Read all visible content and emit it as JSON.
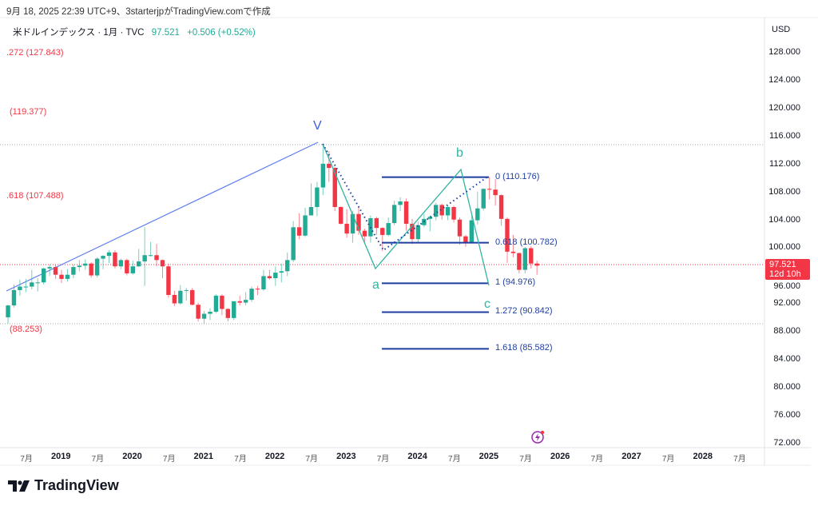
{
  "caption": "9月 18, 2025 22:39 UTC+9、3starterjpがTradingView.comで作成",
  "legend": {
    "symbol": "米ドルインデックス · 1月 · TVC",
    "price": "97.521",
    "change": "+0.506 (+0.52%)"
  },
  "currency": "USD",
  "current_tag": {
    "price": "97.521",
    "countdown": "12d 10h"
  },
  "colors": {
    "up": "#22ab94",
    "down": "#f23645",
    "fib": "#1e3fa0",
    "wave": "#2fb5a0",
    "trend": "#5b7cf0"
  },
  "left_fib_labels": [
    ".272 (127.843)",
    "(119.377)",
    ".618 (107.488)",
    "(88.253)"
  ],
  "fib_levels": [
    {
      "label": "0 (110.176)",
      "value": 110.176
    },
    {
      "label": "0.618 (100.782)",
      "value": 100.782
    },
    {
      "label": "1 (94.976)",
      "value": 94.976
    },
    {
      "label": "1.272 (90.842)",
      "value": 90.842
    },
    {
      "label": "1.618 (85.582)",
      "value": 85.582
    }
  ],
  "wave_labels": {
    "v": "V",
    "a": "a",
    "b": "b",
    "c": "c"
  },
  "logo": "TradingView",
  "chart_data": {
    "type": "candlestick",
    "price_ticks": [
      "128.000",
      "124.000",
      "120.000",
      "116.000",
      "112.000",
      "108.000",
      "104.000",
      "100.000",
      "96.000",
      "92.000",
      "88.000",
      "84.000",
      "80.000",
      "76.000",
      "72.000"
    ],
    "ylim": [
      72,
      128
    ],
    "time_ticks": [
      {
        "t": "7月",
        "y": false,
        "m": -6
      },
      {
        "t": "2019",
        "y": true,
        "m": 0
      },
      {
        "t": "7月",
        "m": 6
      },
      {
        "t": "2020",
        "y": true,
        "m": 12
      },
      {
        "t": "7月",
        "m": 18
      },
      {
        "t": "2021",
        "y": true,
        "m": 24
      },
      {
        "t": "7月",
        "m": 30
      },
      {
        "t": "2022",
        "y": true,
        "m": 36
      },
      {
        "t": "7月",
        "m": 42
      },
      {
        "t": "2023",
        "y": true,
        "m": 48
      },
      {
        "t": "7月",
        "m": 54
      },
      {
        "t": "2024",
        "y": true,
        "m": 60
      },
      {
        "t": "7月",
        "m": 66
      },
      {
        "t": "2025",
        "y": true,
        "m": 72
      },
      {
        "t": "7月",
        "m": 78
      },
      {
        "t": "2026",
        "y": true,
        "m": 84
      },
      {
        "t": "7月",
        "m": 90
      },
      {
        "t": "2027",
        "y": true,
        "m": 96
      },
      {
        "t": "7月",
        "m": 102
      },
      {
        "t": "2028",
        "y": true,
        "m": 108
      },
      {
        "t": "7月",
        "m": 114
      }
    ],
    "first_candle_month_offset": -9,
    "ohlc": [
      [
        90.1,
        91.9,
        89.2,
        91.8
      ],
      [
        91.8,
        94.8,
        91.5,
        94.0
      ],
      [
        94.0,
        95.5,
        93.2,
        94.5
      ],
      [
        94.5,
        95.6,
        93.7,
        94.5
      ],
      [
        94.5,
        96.9,
        94.1,
        95.1
      ],
      [
        95.1,
        95.7,
        93.8,
        95.1
      ],
      [
        95.1,
        97.2,
        94.8,
        97.1
      ],
      [
        97.1,
        97.7,
        96.0,
        97.3
      ],
      [
        97.3,
        97.7,
        95.6,
        96.2
      ],
      [
        96.2,
        96.9,
        95.0,
        95.6
      ],
      [
        95.6,
        97.0,
        95.2,
        96.2
      ],
      [
        96.2,
        97.7,
        95.7,
        97.3
      ],
      [
        97.3,
        98.3,
        96.7,
        97.5
      ],
      [
        97.5,
        98.4,
        96.9,
        97.8
      ],
      [
        97.8,
        98.0,
        95.8,
        96.1
      ],
      [
        96.1,
        98.7,
        95.8,
        98.5
      ],
      [
        98.5,
        99.0,
        97.0,
        98.9
      ],
      [
        98.9,
        99.7,
        97.9,
        99.4
      ],
      [
        99.4,
        99.7,
        97.1,
        97.4
      ],
      [
        97.4,
        98.5,
        97.0,
        98.3
      ],
      [
        98.3,
        98.5,
        96.1,
        96.4
      ],
      [
        96.4,
        98.2,
        96.2,
        97.4
      ],
      [
        97.4,
        99.9,
        97.3,
        98.1
      ],
      [
        98.1,
        103.0,
        94.6,
        99.0
      ],
      [
        99.0,
        100.9,
        98.8,
        99.0
      ],
      [
        99.0,
        100.6,
        97.4,
        98.3
      ],
      [
        98.3,
        98.4,
        95.7,
        97.4
      ],
      [
        97.4,
        97.8,
        92.9,
        93.3
      ],
      [
        93.3,
        93.9,
        91.7,
        92.1
      ],
      [
        92.1,
        94.7,
        91.9,
        93.9
      ],
      [
        93.9,
        94.3,
        92.5,
        94.0
      ],
      [
        94.0,
        94.3,
        91.8,
        91.9
      ],
      [
        91.9,
        92.2,
        89.5,
        89.9
      ],
      [
        89.9,
        91.0,
        89.2,
        90.6
      ],
      [
        90.6,
        91.4,
        89.7,
        90.9
      ],
      [
        90.9,
        93.4,
        90.7,
        93.2
      ],
      [
        93.2,
        93.4,
        90.4,
        91.3
      ],
      [
        91.3,
        91.4,
        89.5,
        90.0
      ],
      [
        90.0,
        92.4,
        89.7,
        92.4
      ],
      [
        92.4,
        93.2,
        91.8,
        92.2
      ],
      [
        92.2,
        93.7,
        91.8,
        92.6
      ],
      [
        92.6,
        94.5,
        92.3,
        94.2
      ],
      [
        94.2,
        94.6,
        93.3,
        94.1
      ],
      [
        94.1,
        96.9,
        93.9,
        96.0
      ],
      [
        96.0,
        96.9,
        95.5,
        95.7
      ],
      [
        95.7,
        97.4,
        94.6,
        96.5
      ],
      [
        96.5,
        97.8,
        95.1,
        96.7
      ],
      [
        96.7,
        99.4,
        96.0,
        98.3
      ],
      [
        98.3,
        103.9,
        98.0,
        103.0
      ],
      [
        103.0,
        105.0,
        101.3,
        101.8
      ],
      [
        101.8,
        105.8,
        101.6,
        104.7
      ],
      [
        104.7,
        109.3,
        104.7,
        105.9
      ],
      [
        105.9,
        109.5,
        104.6,
        108.7
      ],
      [
        108.7,
        114.8,
        107.6,
        112.1
      ],
      [
        112.1,
        113.9,
        109.5,
        111.5
      ],
      [
        111.5,
        111.6,
        105.3,
        105.9
      ],
      [
        105.9,
        106.0,
        103.4,
        103.5
      ],
      [
        103.5,
        105.6,
        101.5,
        102.1
      ],
      [
        102.1,
        105.4,
        100.8,
        104.9
      ],
      [
        104.9,
        105.9,
        101.9,
        102.5
      ],
      [
        102.5,
        102.8,
        100.8,
        101.7
      ],
      [
        101.7,
        104.7,
        100.8,
        104.3
      ],
      [
        104.3,
        104.5,
        101.9,
        102.9
      ],
      [
        102.9,
        103.0,
        99.6,
        101.9
      ],
      [
        101.9,
        104.4,
        101.7,
        103.6
      ],
      [
        103.6,
        106.8,
        103.3,
        106.2
      ],
      [
        106.2,
        107.3,
        105.3,
        106.7
      ],
      [
        106.7,
        107.1,
        102.5,
        103.5
      ],
      [
        103.5,
        104.2,
        100.6,
        101.3
      ],
      [
        101.3,
        103.8,
        100.8,
        103.3
      ],
      [
        103.3,
        104.9,
        103.0,
        104.2
      ],
      [
        104.2,
        104.7,
        102.4,
        104.5
      ],
      [
        104.5,
        106.5,
        104.0,
        106.2
      ],
      [
        106.2,
        106.4,
        104.1,
        104.7
      ],
      [
        104.7,
        106.1,
        104.0,
        105.9
      ],
      [
        105.9,
        106.1,
        103.7,
        104.1
      ],
      [
        104.1,
        104.4,
        100.5,
        101.7
      ],
      [
        101.7,
        101.9,
        100.2,
        100.8
      ],
      [
        100.8,
        104.6,
        100.7,
        104.0
      ],
      [
        104.0,
        108.1,
        103.4,
        105.7
      ],
      [
        105.7,
        108.6,
        105.4,
        108.5
      ],
      [
        108.5,
        110.2,
        107.0,
        108.4
      ],
      [
        108.4,
        109.9,
        106.1,
        107.6
      ],
      [
        107.6,
        107.7,
        103.2,
        104.2
      ],
      [
        104.2,
        104.4,
        97.9,
        99.5
      ],
      [
        99.5,
        101.9,
        98.7,
        99.3
      ],
      [
        99.3,
        99.4,
        96.4,
        96.9
      ],
      [
        96.9,
        100.2,
        96.4,
        100.0
      ],
      [
        100.0,
        100.3,
        97.1,
        97.8
      ],
      [
        97.8,
        98.2,
        96.2,
        97.5
      ]
    ]
  }
}
